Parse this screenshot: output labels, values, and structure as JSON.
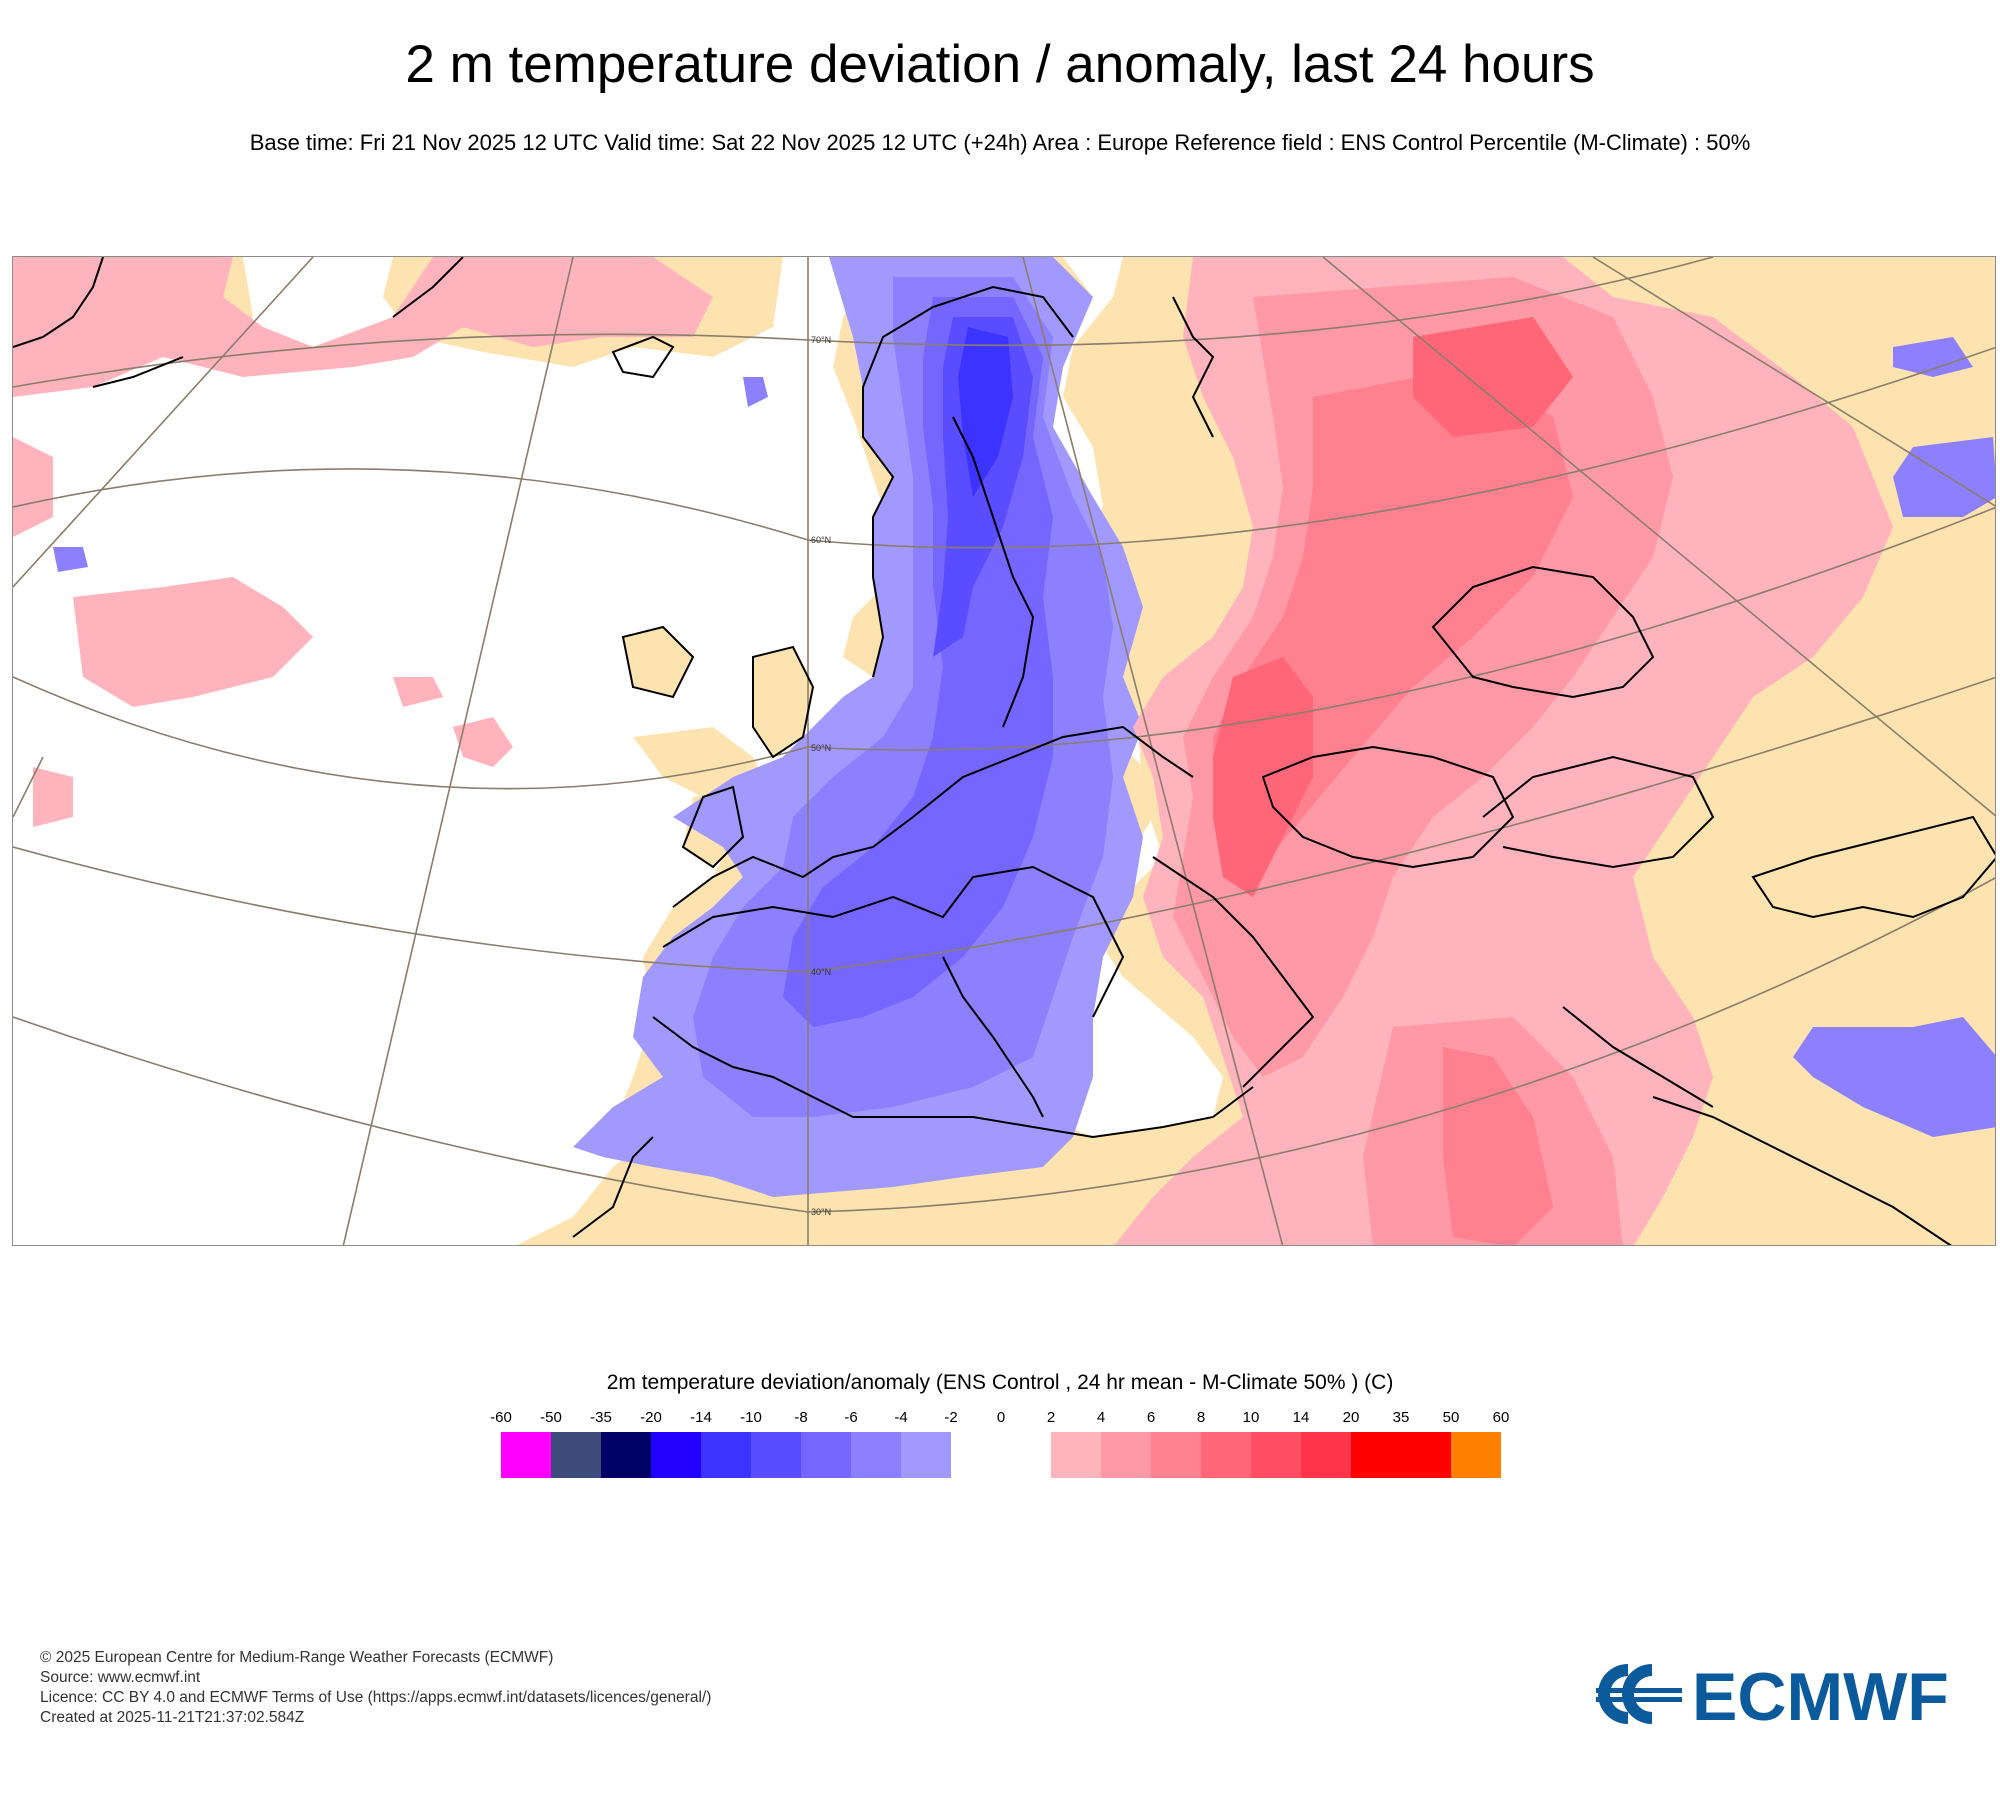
{
  "title": "2 m temperature deviation / anomaly, last 24 hours",
  "subtitle": "Base time: Fri 21 Nov 2025 12 UTC Valid time: Sat 22 Nov 2025 12 UTC (+24h) Area : Europe Reference field : ENS Control Percentile (M-Climate) : 50%",
  "map": {
    "latitude_labels": [
      "70°N",
      "60°N",
      "50°N",
      "40°N",
      "30°N"
    ],
    "colors": {
      "land": "#fde3b0",
      "sea": "#ffffff",
      "graticule": "#8b7d6b",
      "coast": "#000000"
    }
  },
  "legend": {
    "title": "2m temperature deviation/anomaly (ENS Control , 24 hr mean - M-Climate 50% ) (C)",
    "ticks": [
      "-60",
      "-50",
      "-35",
      "-20",
      "-14",
      "-10",
      "-8",
      "-6",
      "-4",
      "-2",
      "0",
      "2",
      "4",
      "6",
      "8",
      "10",
      "14",
      "20",
      "35",
      "50",
      "60"
    ],
    "colors": [
      "#ff00ff",
      "#3d4a7a",
      "#000066",
      "#2200ff",
      "#3c33ff",
      "#5a4dff",
      "#7566ff",
      "#8c80ff",
      "#a299ff",
      "#ffffff",
      "#ffffff",
      "#ffb3bc",
      "#ff99a5",
      "#ff808f",
      "#ff6678",
      "#ff4d61",
      "#ff334a",
      "#ff0000",
      "#ff0000",
      "#ff8000"
    ]
  },
  "footer": {
    "lines": [
      "© 2025 European Centre for Medium-Range Weather Forecasts (ECMWF)",
      "Source: www.ecmwf.int",
      "Licence: CC BY 4.0 and ECMWF Terms of Use (https://apps.ecmwf.int/datasets/licences/general/)",
      "Created at 2025-11-21T21:37:02.584Z"
    ]
  },
  "logo": {
    "text": "ECMWF",
    "color": "#0b5a9c"
  }
}
